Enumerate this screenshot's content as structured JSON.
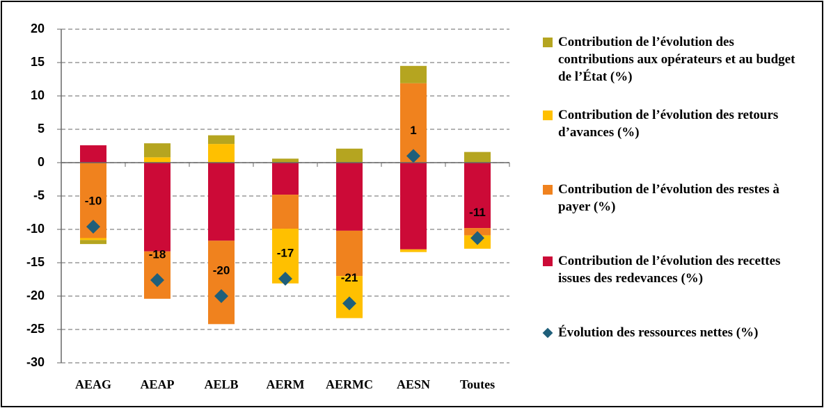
{
  "chart_data": {
    "type": "bar",
    "categories": [
      "AEAG",
      "AEAP",
      "AELB",
      "AERM",
      "AERMC",
      "AESN",
      "Toutes"
    ],
    "series": [
      {
        "name": "Contribution de l’évolution des recettes issues des redevances (%)",
        "color": "#cc0a37",
        "values": [
          2.6,
          -13.3,
          -11.7,
          -4.8,
          -10.2,
          -13.0,
          -9.8
        ]
      },
      {
        "name": "Contribution de l’évolution des restes à payer (%)",
        "color": "#f0821e",
        "values": [
          -11.3,
          -7.1,
          -12.5,
          -5.1,
          -6.8,
          11.9,
          -1.1
        ]
      },
      {
        "name": "Contribution de l’évolution des retours d’avances (%)",
        "color": "#ffc000",
        "values": [
          -0.3,
          0.8,
          2.8,
          -8.2,
          -6.3,
          -0.4,
          -2.0
        ]
      },
      {
        "name": "Contribution de l’évolution des contributions aux opérateurs et au budget de l’État (%)",
        "color": "#b5a520",
        "values": [
          -0.6,
          2.1,
          1.3,
          0.6,
          2.1,
          2.6,
          1.6
        ]
      },
      {
        "name": "Évolution des ressources nettes (%)",
        "color": "#1f5f7a",
        "type": "scatter",
        "values": [
          -9.6,
          -17.6,
          -20.0,
          -17.4,
          -21.1,
          1.0,
          -11.3
        ],
        "value_labels": [
          "-10",
          "-18",
          "-20",
          "-17",
          "-21",
          "1",
          "-11"
        ]
      }
    ],
    "ylim": [
      -30,
      20
    ],
    "yticks": [
      -30,
      -25,
      -20,
      -15,
      -10,
      -5,
      0,
      5,
      10,
      15,
      20
    ],
    "grid": true
  }
}
